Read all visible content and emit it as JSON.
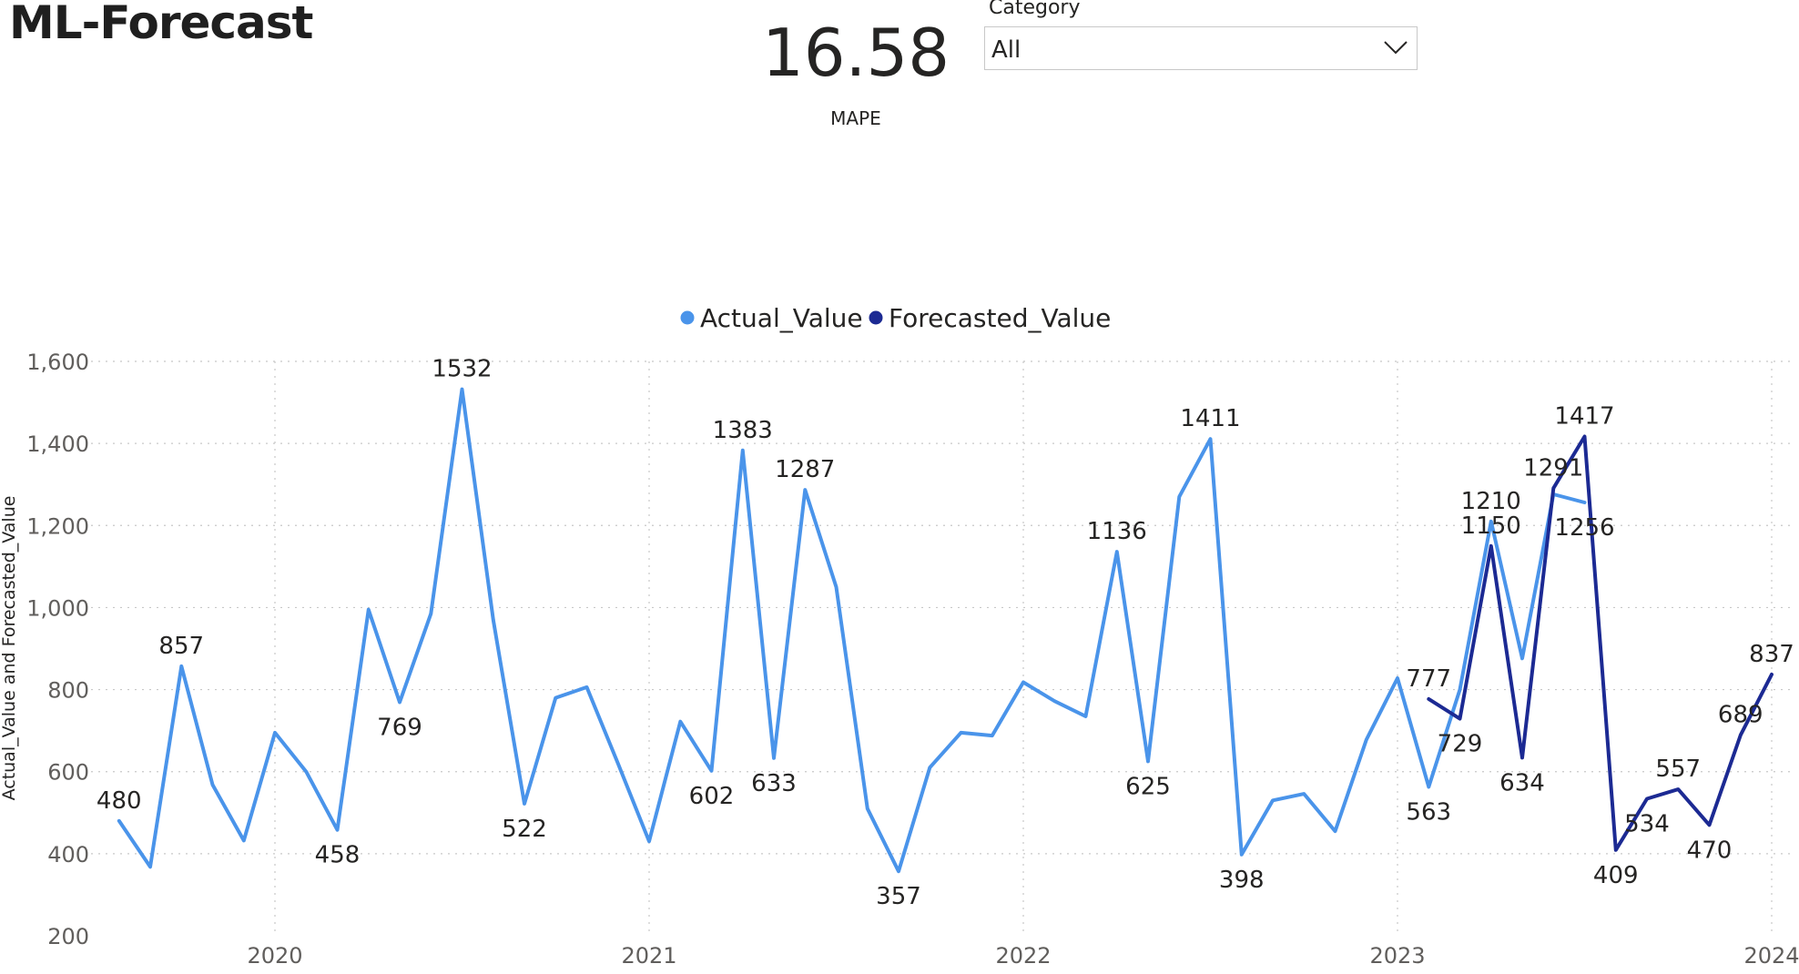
{
  "page": {
    "title": "ML-Forecast"
  },
  "kpi": {
    "value": "16.58",
    "label": "MAPE"
  },
  "slicer": {
    "label": "Category",
    "value": "All",
    "icon": "chevron-down-icon"
  },
  "chart_data": {
    "type": "line",
    "title": "",
    "xlabel": "",
    "ylabel": "Actual_Value and Forecasted_Value",
    "ylim": [
      200,
      1600
    ],
    "yticks": [
      200,
      400,
      600,
      800,
      1000,
      1200,
      1400,
      1600
    ],
    "yticklabels": [
      "200",
      "400",
      "600",
      "800",
      "1,000",
      "1,200",
      "1,400",
      "1,600"
    ],
    "xticks": [
      "2020",
      "2021",
      "2022",
      "2023",
      "2024"
    ],
    "grid": true,
    "legend": "top-center",
    "series": [
      {
        "name": "Actual_Value",
        "color": "#4a94ea",
        "points": [
          {
            "x": "2019-08",
            "y": 480,
            "label": "480"
          },
          {
            "x": "2019-09",
            "y": 368
          },
          {
            "x": "2019-10",
            "y": 857,
            "label": "857"
          },
          {
            "x": "2019-11",
            "y": 568
          },
          {
            "x": "2019-12",
            "y": 432
          },
          {
            "x": "2020-01",
            "y": 695
          },
          {
            "x": "2020-02",
            "y": 600
          },
          {
            "x": "2020-03",
            "y": 458,
            "label": "458"
          },
          {
            "x": "2020-04",
            "y": 995
          },
          {
            "x": "2020-05",
            "y": 769,
            "label": "769"
          },
          {
            "x": "2020-06",
            "y": 985
          },
          {
            "x": "2020-07",
            "y": 1532,
            "label": "1532"
          },
          {
            "x": "2020-08",
            "y": 970
          },
          {
            "x": "2020-09",
            "y": 522,
            "label": "522"
          },
          {
            "x": "2020-10",
            "y": 780
          },
          {
            "x": "2020-11",
            "y": 806
          },
          {
            "x": "2020-12",
            "y": 620
          },
          {
            "x": "2021-01",
            "y": 430
          },
          {
            "x": "2021-02",
            "y": 722
          },
          {
            "x": "2021-03",
            "y": 602,
            "label": "602"
          },
          {
            "x": "2021-04",
            "y": 1383,
            "label": "1383"
          },
          {
            "x": "2021-05",
            "y": 633,
            "label": "633"
          },
          {
            "x": "2021-06",
            "y": 1287,
            "label": "1287"
          },
          {
            "x": "2021-07",
            "y": 1050
          },
          {
            "x": "2021-08",
            "y": 510
          },
          {
            "x": "2021-09",
            "y": 357,
            "label": "357"
          },
          {
            "x": "2021-10",
            "y": 610
          },
          {
            "x": "2021-11",
            "y": 695
          },
          {
            "x": "2021-12",
            "y": 688
          },
          {
            "x": "2022-01",
            "y": 818
          },
          {
            "x": "2022-02",
            "y": 772
          },
          {
            "x": "2022-03",
            "y": 735
          },
          {
            "x": "2022-04",
            "y": 1136,
            "label": "1136"
          },
          {
            "x": "2022-05",
            "y": 625,
            "label": "625"
          },
          {
            "x": "2022-06",
            "y": 1270
          },
          {
            "x": "2022-07",
            "y": 1411,
            "label": "1411"
          },
          {
            "x": "2022-08",
            "y": 398,
            "label": "398"
          },
          {
            "x": "2022-09",
            "y": 530
          },
          {
            "x": "2022-10",
            "y": 546
          },
          {
            "x": "2022-11",
            "y": 455
          },
          {
            "x": "2022-12",
            "y": 678
          },
          {
            "x": "2023-01",
            "y": 828
          },
          {
            "x": "2023-02",
            "y": 563,
            "label": "563"
          },
          {
            "x": "2023-03",
            "y": 800
          },
          {
            "x": "2023-04",
            "y": 1210,
            "label": "1210"
          },
          {
            "x": "2023-05",
            "y": 876
          },
          {
            "x": "2023-06",
            "y": 1276
          },
          {
            "x": "2023-07",
            "y": 1256,
            "label": "1256"
          }
        ]
      },
      {
        "name": "Forecasted_Value",
        "color": "#1c2a93",
        "points": [
          {
            "x": "2023-02",
            "y": 777,
            "label": "777"
          },
          {
            "x": "2023-03",
            "y": 729,
            "label": "729"
          },
          {
            "x": "2023-04",
            "y": 1150,
            "label": "1150"
          },
          {
            "x": "2023-05",
            "y": 634,
            "label": "634"
          },
          {
            "x": "2023-06",
            "y": 1291,
            "label": "1291"
          },
          {
            "x": "2023-07",
            "y": 1417,
            "label": "1417"
          },
          {
            "x": "2023-08",
            "y": 409,
            "label": "409"
          },
          {
            "x": "2023-09",
            "y": 534,
            "label": "534"
          },
          {
            "x": "2023-10",
            "y": 557,
            "label": "557"
          },
          {
            "x": "2023-11",
            "y": 470,
            "label": "470"
          },
          {
            "x": "2023-12",
            "y": 689,
            "label": "689"
          },
          {
            "x": "2024-01",
            "y": 837,
            "label": "837"
          }
        ]
      }
    ]
  }
}
